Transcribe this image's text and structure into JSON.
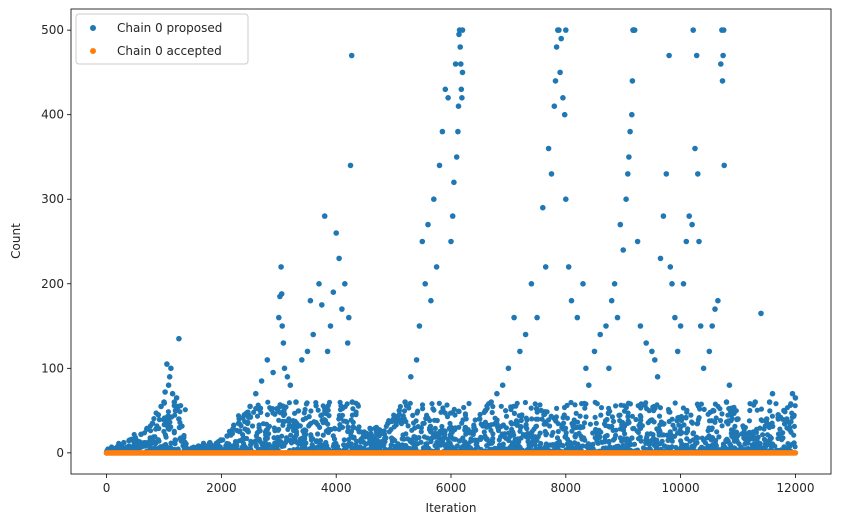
{
  "chart_data": {
    "type": "scatter",
    "xlabel": "Iteration",
    "ylabel": "Count",
    "xlim": [
      -620,
      12620
    ],
    "ylim": [
      -25,
      525
    ],
    "xticks": [
      0,
      2000,
      4000,
      6000,
      8000,
      10000,
      12000
    ],
    "yticks": [
      0,
      100,
      200,
      300,
      400,
      500
    ],
    "grid": false,
    "legend_position": "top-left",
    "series": [
      {
        "name": "Chain 0 proposed",
        "color": "#1f77b4",
        "x": [
          0,
          20,
          40,
          80,
          120,
          200,
          300,
          400,
          500,
          600,
          700,
          800,
          900,
          950,
          1000,
          1020,
          1050,
          1080,
          1100,
          1120,
          1150,
          1180,
          1200,
          1220,
          1240,
          1260,
          1260,
          1270,
          1400,
          1600,
          1800,
          2000,
          2100,
          2200,
          2300,
          2400,
          2500,
          2600,
          2700,
          2800,
          2900,
          3000,
          3020,
          3040,
          3050,
          3060,
          3080,
          3100,
          3150,
          3200,
          3300,
          3400,
          3500,
          3550,
          3600,
          3700,
          3750,
          3800,
          3850,
          3900,
          3950,
          4000,
          4050,
          4100,
          4150,
          4200,
          4220,
          4250,
          4270,
          4280,
          4300,
          4300,
          4400,
          4500,
          4600,
          4700,
          4800,
          4900,
          5000,
          5100,
          5200,
          5300,
          5400,
          5450,
          5500,
          5550,
          5600,
          5650,
          5700,
          5750,
          5800,
          5850,
          5900,
          5950,
          6000,
          6030,
          6050,
          6080,
          6100,
          6120,
          6130,
          6140,
          6150,
          6160,
          6170,
          6180,
          6190,
          6200,
          6200,
          6250,
          6300,
          6400,
          6500,
          6600,
          6700,
          6800,
          6900,
          7000,
          7100,
          7200,
          7300,
          7400,
          7500,
          7600,
          7650,
          7700,
          7750,
          7800,
          7820,
          7840,
          7860,
          7880,
          7900,
          7920,
          7950,
          7980,
          8000,
          8000,
          8050,
          8100,
          8200,
          8300,
          8350,
          8400,
          8500,
          8600,
          8700,
          8750,
          8800,
          8850,
          8900,
          8950,
          9000,
          9050,
          9080,
          9100,
          9120,
          9150,
          9160,
          9170,
          9180,
          9200,
          9250,
          9300,
          9400,
          9500,
          9550,
          9600,
          9650,
          9700,
          9750,
          9800,
          9820,
          9850,
          9900,
          9950,
          10000,
          10050,
          10100,
          10150,
          10200,
          10220,
          10250,
          10280,
          10300,
          10320,
          10350,
          10400,
          10500,
          10550,
          10600,
          10650,
          10700,
          10720,
          10730,
          10740,
          10750,
          10760,
          10800,
          10850,
          10900,
          11000,
          11100,
          11200,
          11300,
          11400,
          11500,
          11550,
          11600,
          11700,
          11800,
          11850,
          11900,
          11950,
          12000
        ],
        "values": [
          0,
          1,
          2,
          3,
          5,
          8,
          12,
          15,
          18,
          22,
          28,
          35,
          45,
          55,
          60,
          72,
          105,
          80,
          90,
          100,
          70,
          60,
          50,
          65,
          55,
          40,
          135,
          30,
          5,
          8,
          12,
          15,
          20,
          28,
          35,
          45,
          55,
          70,
          85,
          110,
          95,
          160,
          185,
          220,
          188,
          150,
          130,
          100,
          90,
          80,
          60,
          110,
          120,
          180,
          140,
          200,
          175,
          280,
          120,
          150,
          190,
          260,
          230,
          170,
          200,
          130,
          160,
          340,
          470,
          60,
          30,
          18,
          25,
          20,
          28,
          30,
          25,
          35,
          40,
          50,
          60,
          90,
          110,
          150,
          250,
          200,
          270,
          180,
          300,
          220,
          340,
          380,
          430,
          420,
          250,
          280,
          320,
          460,
          350,
          380,
          410,
          495,
          500,
          480,
          460,
          430,
          420,
          500,
          450,
          30,
          25,
          30,
          40,
          50,
          60,
          70,
          80,
          100,
          160,
          120,
          140,
          200,
          160,
          290,
          220,
          360,
          330,
          410,
          440,
          480,
          500,
          500,
          450,
          490,
          420,
          400,
          500,
          300,
          220,
          180,
          160,
          200,
          100,
          80,
          120,
          140,
          150,
          100,
          180,
          200,
          160,
          270,
          240,
          300,
          330,
          350,
          380,
          400,
          440,
          500,
          500,
          500,
          250,
          150,
          130,
          120,
          110,
          90,
          230,
          280,
          330,
          470,
          220,
          200,
          160,
          120,
          150,
          200,
          250,
          280,
          270,
          500,
          360,
          470,
          330,
          250,
          150,
          100,
          120,
          150,
          170,
          180,
          460,
          500,
          440,
          470,
          500,
          340,
          60,
          80,
          50,
          40,
          30,
          20,
          60,
          165,
          40,
          60,
          70,
          45,
          50,
          40,
          30,
          70,
          65
        ]
      },
      {
        "name": "Chain 0 accepted",
        "color": "#ff7f0e",
        "x": [
          0,
          12000
        ],
        "values": [
          0,
          0
        ]
      }
    ]
  }
}
